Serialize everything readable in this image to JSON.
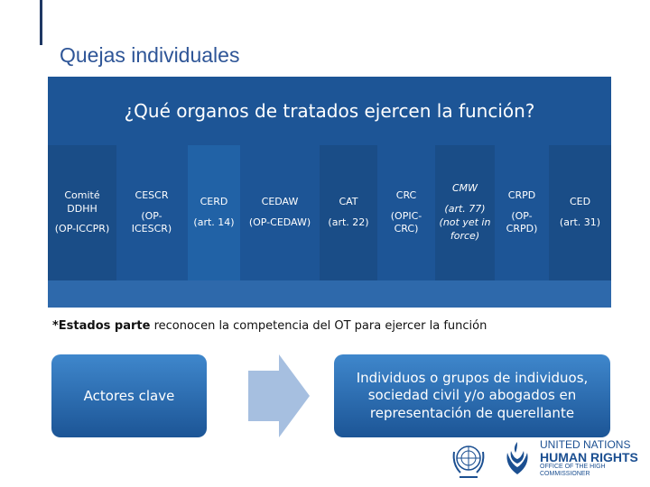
{
  "slide": {
    "title": "Quejas individuales"
  },
  "panel": {
    "question": "¿Qué organos de tratados ejercen la función?",
    "bodies": [
      {
        "name": "Comité DDHH",
        "instrument": "(OP-ICCPR)"
      },
      {
        "name": "CESCR",
        "instrument": "(OP-ICESCR)"
      },
      {
        "name": "CERD",
        "instrument": "(art. 14)"
      },
      {
        "name": "CEDAW",
        "instrument": "(OP-CEDAW)"
      },
      {
        "name": "CAT",
        "instrument": "(art. 22)"
      },
      {
        "name": "CRC",
        "instrument": "(OPIC-CRC)"
      },
      {
        "name": "CMW",
        "instrument": "(art. 77) (not yet in force)"
      },
      {
        "name": "CRPD",
        "instrument": "(OP-CRPD)"
      },
      {
        "name": "CED",
        "instrument": "(art. 31)"
      }
    ]
  },
  "note": {
    "bold": "*Estados parte",
    "rest": " reconocen la competencia del OT para ejercer la función"
  },
  "flow": {
    "actors_label": "Actores clave",
    "individuals_label": "Individuos o grupos de individuos, sociedad civil y/o abogados en representación de querellante"
  },
  "logos": {
    "ohchr_line1": "UNITED NATIONS",
    "ohchr_line2": "HUMAN RIGHTS",
    "ohchr_line3": "OFFICE OF THE HIGH COMMISSIONER"
  },
  "colors": {
    "panel": "#1d5596",
    "title": "#2e5597",
    "arrow": "#a6bfe0"
  }
}
